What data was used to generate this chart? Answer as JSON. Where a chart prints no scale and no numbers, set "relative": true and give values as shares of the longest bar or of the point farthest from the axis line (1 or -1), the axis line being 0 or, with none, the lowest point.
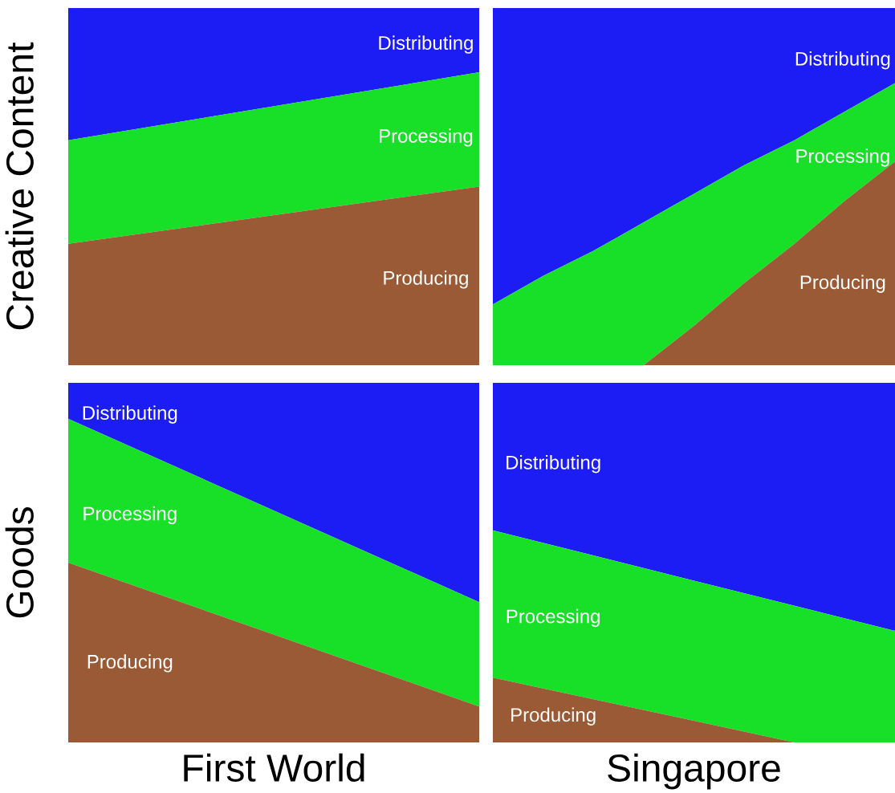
{
  "chart_data": [
    {
      "type": "area",
      "stacked": true,
      "relative": true,
      "tick_labels": false,
      "ylabel": "Creative Content",
      "categories": [
        null,
        null
      ],
      "series": [
        {
          "name": "Producing",
          "color": "#9a5a35",
          "values": [
            0.34,
            0.5
          ]
        },
        {
          "name": "Processing",
          "color": "#18e028",
          "values": [
            0.29,
            0.32
          ]
        },
        {
          "name": "Distributing",
          "color": "#1c1cf4",
          "values": [
            0.37,
            0.18
          ]
        }
      ]
    },
    {
      "type": "area",
      "stacked": true,
      "relative": true,
      "tick_labels": false,
      "categories": [
        null,
        null,
        null,
        null,
        null,
        null,
        null,
        null,
        null
      ],
      "series": [
        {
          "name": "Producing",
          "color": "#9a5a35",
          "values": [
            0,
            0,
            0,
            0,
            0.11,
            0.23,
            0.34,
            0.46,
            0.57
          ]
        },
        {
          "name": "Processing",
          "color": "#18e028",
          "values": [
            0.17,
            0.25,
            0.32,
            0.4,
            0.37,
            0.33,
            0.29,
            0.25,
            0.22
          ]
        },
        {
          "name": "Distributing",
          "color": "#1c1cf4",
          "values": [
            0.83,
            0.75,
            0.68,
            0.6,
            0.52,
            0.44,
            0.37,
            0.29,
            0.21
          ]
        }
      ]
    },
    {
      "type": "area",
      "stacked": true,
      "relative": true,
      "tick_labels": false,
      "ylabel": "Goods",
      "xlabel": "First World",
      "categories": [
        null,
        null
      ],
      "series": [
        {
          "name": "Producing",
          "color": "#9a5a35",
          "values": [
            0.5,
            0.1
          ]
        },
        {
          "name": "Processing",
          "color": "#18e028",
          "values": [
            0.4,
            0.29
          ]
        },
        {
          "name": "Distributing",
          "color": "#1c1cf4",
          "values": [
            0.1,
            0.61
          ]
        }
      ]
    },
    {
      "type": "area",
      "stacked": true,
      "relative": true,
      "tick_labels": false,
      "xlabel": "Singapore",
      "categories": [
        null,
        null,
        null,
        null,
        null
      ],
      "series": [
        {
          "name": "Producing",
          "color": "#9a5a35",
          "values": [
            0.18,
            0.12,
            0.06,
            0,
            0
          ]
        },
        {
          "name": "Processing",
          "color": "#18e028",
          "values": [
            0.41,
            0.4,
            0.39,
            0.38,
            0.31
          ]
        },
        {
          "name": "Distributing",
          "color": "#1c1cf4",
          "values": [
            0.41,
            0.48,
            0.55,
            0.62,
            0.69
          ]
        }
      ]
    }
  ]
}
